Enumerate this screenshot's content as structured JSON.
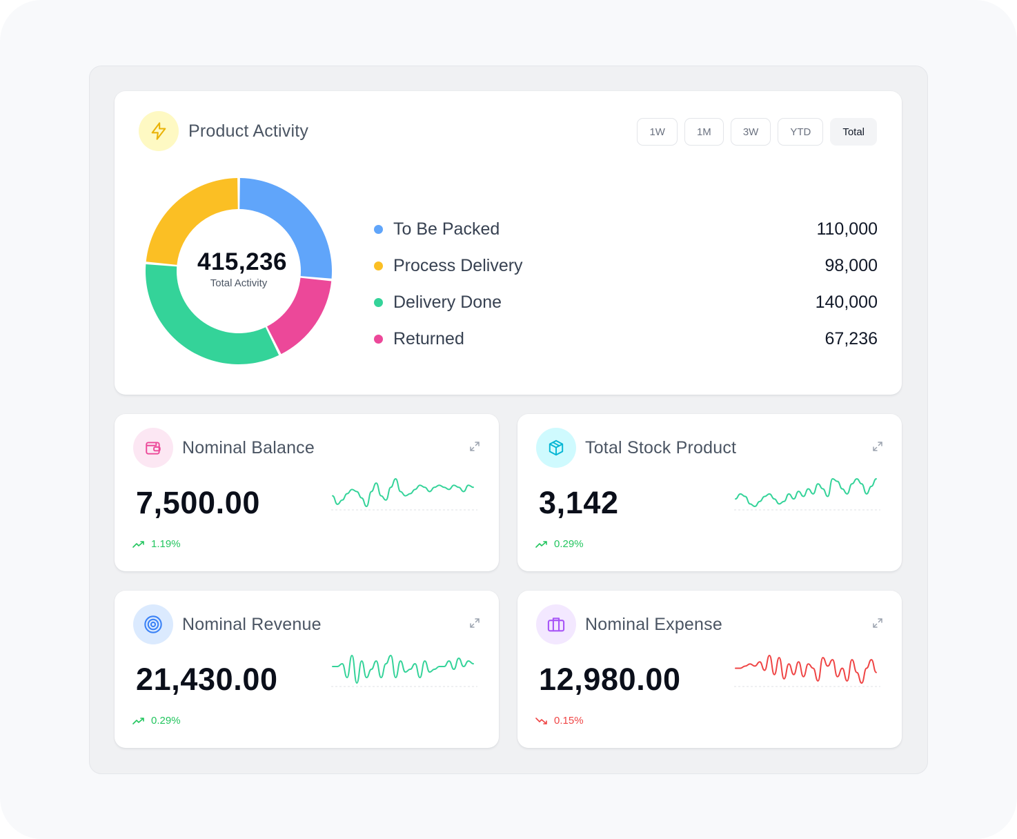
{
  "activity": {
    "title": "Product Activity",
    "icon": "lightning-icon",
    "tabs": [
      {
        "label": "1W",
        "active": false
      },
      {
        "label": "1M",
        "active": false
      },
      {
        "label": "3W",
        "active": false
      },
      {
        "label": "YTD",
        "active": false
      },
      {
        "label": "Total",
        "active": true
      }
    ],
    "total": "415,236",
    "total_caption": "Total Activity",
    "items": [
      {
        "label": "To Be Packed",
        "value": "110,000",
        "color": "#60a5fa"
      },
      {
        "label": "Process Delivery",
        "value": "98,000",
        "color": "#fbbf24"
      },
      {
        "label": "Delivery Done",
        "value": "140,000",
        "color": "#34d399"
      },
      {
        "label": "Returned",
        "value": "67,236",
        "color": "#ec4899"
      }
    ]
  },
  "stats": [
    {
      "title": "Nominal Balance",
      "icon": "wallet-icon",
      "icon_color": "#ec4899",
      "icon_bg": "#fce7f3",
      "value": "7,500.00",
      "change": "1.19%",
      "trend": "up",
      "sparkline": [
        8,
        4,
        6,
        9,
        11,
        10,
        7,
        3,
        10,
        14,
        8,
        6,
        12,
        16,
        10,
        8,
        9,
        11,
        13,
        12,
        10,
        12,
        13,
        12,
        11,
        13,
        12,
        10,
        13,
        12
      ]
    },
    {
      "title": "Total Stock Product",
      "icon": "box-icon",
      "icon_color": "#06b6d4",
      "icon_bg": "#cffafe",
      "value": "3,142",
      "change": "0.29%",
      "trend": "up",
      "sparkline": [
        8,
        10,
        9,
        6,
        5,
        7,
        9,
        10,
        8,
        6,
        7,
        10,
        8,
        11,
        9,
        12,
        10,
        14,
        12,
        9,
        16,
        15,
        12,
        10,
        14,
        16,
        14,
        10,
        13,
        16
      ]
    },
    {
      "title": "Nominal Revenue",
      "icon": "target-icon",
      "icon_color": "#3b82f6",
      "icon_bg": "#dbeafe",
      "value": "21,430.00",
      "change": "0.29%",
      "trend": "up",
      "sparkline": [
        10,
        10,
        11,
        6,
        14,
        4,
        12,
        6,
        9,
        12,
        6,
        11,
        14,
        6,
        12,
        8,
        9,
        11,
        6,
        12,
        8,
        9,
        10,
        10,
        12,
        9,
        13,
        10,
        12,
        11
      ]
    },
    {
      "title": "Nominal Expense",
      "icon": "briefcase-icon",
      "icon_color": "#a855f7",
      "icon_bg": "#f3e8ff",
      "value": "12,980.00",
      "change": "0.15%",
      "trend": "down",
      "sparkline": [
        10,
        10,
        11,
        12,
        11,
        13,
        9,
        16,
        7,
        15,
        5,
        12,
        7,
        13,
        6,
        12,
        10,
        4,
        15,
        11,
        14,
        6,
        10,
        4,
        14,
        8,
        3,
        10,
        14,
        8
      ]
    }
  ],
  "colors": {
    "up": "#22c55e",
    "down": "#ef4444",
    "spark_up": "#34d399",
    "spark_down": "#ef4444"
  }
}
